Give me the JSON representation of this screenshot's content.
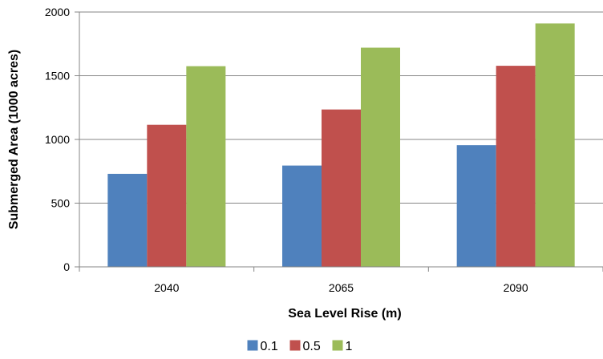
{
  "chart_data": {
    "type": "bar",
    "xlabel": "Sea Level Rise (m)",
    "ylabel": "Submerged Area (1000 acres)",
    "categories": [
      "2040",
      "2065",
      "2090"
    ],
    "series": [
      {
        "name": "0.1",
        "color": "#4F81BD",
        "values": [
          730,
          795,
          955
        ]
      },
      {
        "name": "0.5",
        "color": "#C0504D",
        "values": [
          1115,
          1235,
          1578
        ]
      },
      {
        "name": "1",
        "color": "#9BBB59",
        "values": [
          1575,
          1720,
          1910
        ]
      }
    ],
    "ylim": [
      0,
      2000
    ],
    "yticks": [
      "0",
      "500",
      "1000",
      "1500",
      "2000"
    ],
    "grid": true,
    "legend": "bottom"
  }
}
